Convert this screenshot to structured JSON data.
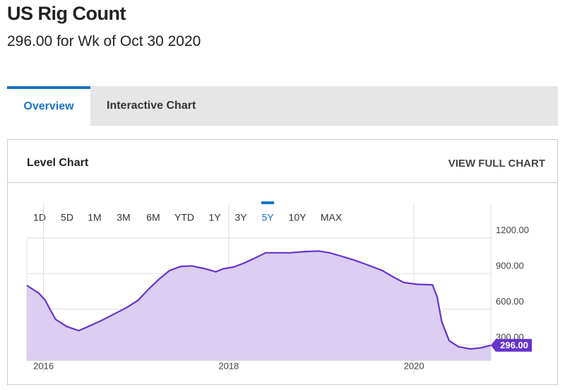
{
  "header": {
    "title": "US Rig Count",
    "subtitle": "296.00 for Wk of Oct 30 2020"
  },
  "tabs": [
    "Overview",
    "Interactive Chart"
  ],
  "card": {
    "title": "Level Chart",
    "link": "VIEW FULL CHART"
  },
  "chart_data": {
    "type": "area",
    "ranges": [
      "1D",
      "5D",
      "1M",
      "3M",
      "6M",
      "YTD",
      "1Y",
      "3Y",
      "5Y",
      "10Y",
      "MAX"
    ],
    "selected_range": "5Y",
    "x": [
      2015.82,
      2015.95,
      2016.02,
      2016.08,
      2016.13,
      2016.25,
      2016.38,
      2016.44,
      2016.6,
      2016.75,
      2016.9,
      2017.02,
      2017.13,
      2017.25,
      2017.36,
      2017.48,
      2017.6,
      2017.75,
      2017.86,
      2017.94,
      2018.05,
      2018.17,
      2018.28,
      2018.4,
      2018.51,
      2018.66,
      2018.82,
      2018.97,
      2019.09,
      2019.2,
      2019.35,
      2019.51,
      2019.66,
      2019.78,
      2019.89,
      2020.03,
      2020.2,
      2020.25,
      2020.3,
      2020.38,
      2020.48,
      2020.61,
      2020.72,
      2020.83
    ],
    "values": [
      800,
      735,
      675,
      585,
      515,
      455,
      420,
      440,
      495,
      555,
      615,
      675,
      765,
      855,
      925,
      960,
      965,
      940,
      915,
      940,
      955,
      990,
      1030,
      1075,
      1075,
      1075,
      1085,
      1090,
      1075,
      1050,
      1015,
      970,
      925,
      870,
      825,
      810,
      805,
      705,
      495,
      335,
      285,
      265,
      275,
      296
    ],
    "color": "#6633cc",
    "fill": "#dccdf3",
    "current": {
      "value": 296,
      "label": "296.00"
    },
    "xlim": [
      2015.82,
      2020.83
    ],
    "xticks": [
      2016,
      2018,
      2020
    ],
    "ylim": [
      170,
      1490
    ],
    "yticks": [
      {
        "value": 300,
        "label": "300.00"
      },
      {
        "value": 600,
        "label": "600.00"
      },
      {
        "value": 900,
        "label": "900.00"
      },
      {
        "value": 1200,
        "label": "1200.00"
      }
    ],
    "grid": true
  }
}
